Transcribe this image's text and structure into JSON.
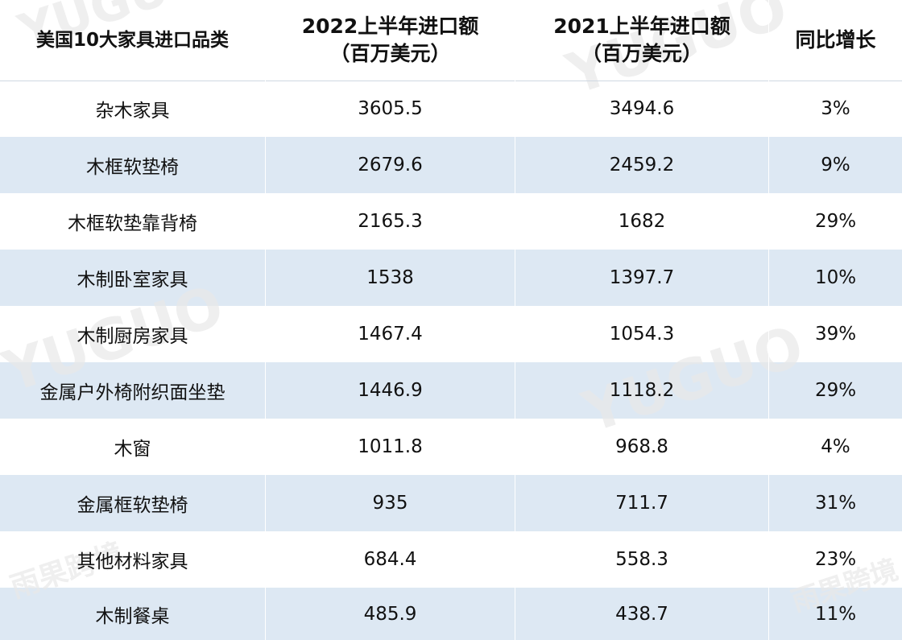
{
  "table": {
    "headers": [
      {
        "line1": "美国10大家具进口品类",
        "line2": ""
      },
      {
        "line1": "2022上半年进口额",
        "line2": "（百万美元）"
      },
      {
        "line1": "2021上半年进口额",
        "line2": "（百万美元）"
      },
      {
        "line1": "同比增长",
        "line2": ""
      }
    ],
    "rows": [
      {
        "category": "杂木家具",
        "y2022": "3605.5",
        "y2021": "3494.6",
        "growth": "3%"
      },
      {
        "category": "木框软垫椅",
        "y2022": "2679.6",
        "y2021": "2459.2",
        "growth": "9%"
      },
      {
        "category": "木框软垫靠背椅",
        "y2022": "2165.3",
        "y2021": "1682",
        "growth": "29%"
      },
      {
        "category": "木制卧室家具",
        "y2022": "1538",
        "y2021": "1397.7",
        "growth": "10%"
      },
      {
        "category": "木制厨房家具",
        "y2022": "1467.4",
        "y2021": "1054.3",
        "growth": "39%"
      },
      {
        "category": "金属户外椅附织面坐垫",
        "y2022": "1446.9",
        "y2021": "1118.2",
        "growth": "29%"
      },
      {
        "category": "木窗",
        "y2022": "1011.8",
        "y2021": "968.8",
        "growth": "4%"
      },
      {
        "category": "金属框软垫椅",
        "y2022": "935",
        "y2021": "711.7",
        "growth": "31%"
      },
      {
        "category": "其他材料家具",
        "y2022": "684.4",
        "y2021": "558.3",
        "growth": "23%"
      },
      {
        "category": "木制餐桌",
        "y2022": "485.9",
        "y2021": "438.7",
        "growth": "11%"
      }
    ]
  },
  "watermark": {
    "latin": "YUGUO",
    "cjk": "雨果跨境"
  },
  "colors": {
    "stripe": "#dde8f3",
    "text": "#111111"
  }
}
